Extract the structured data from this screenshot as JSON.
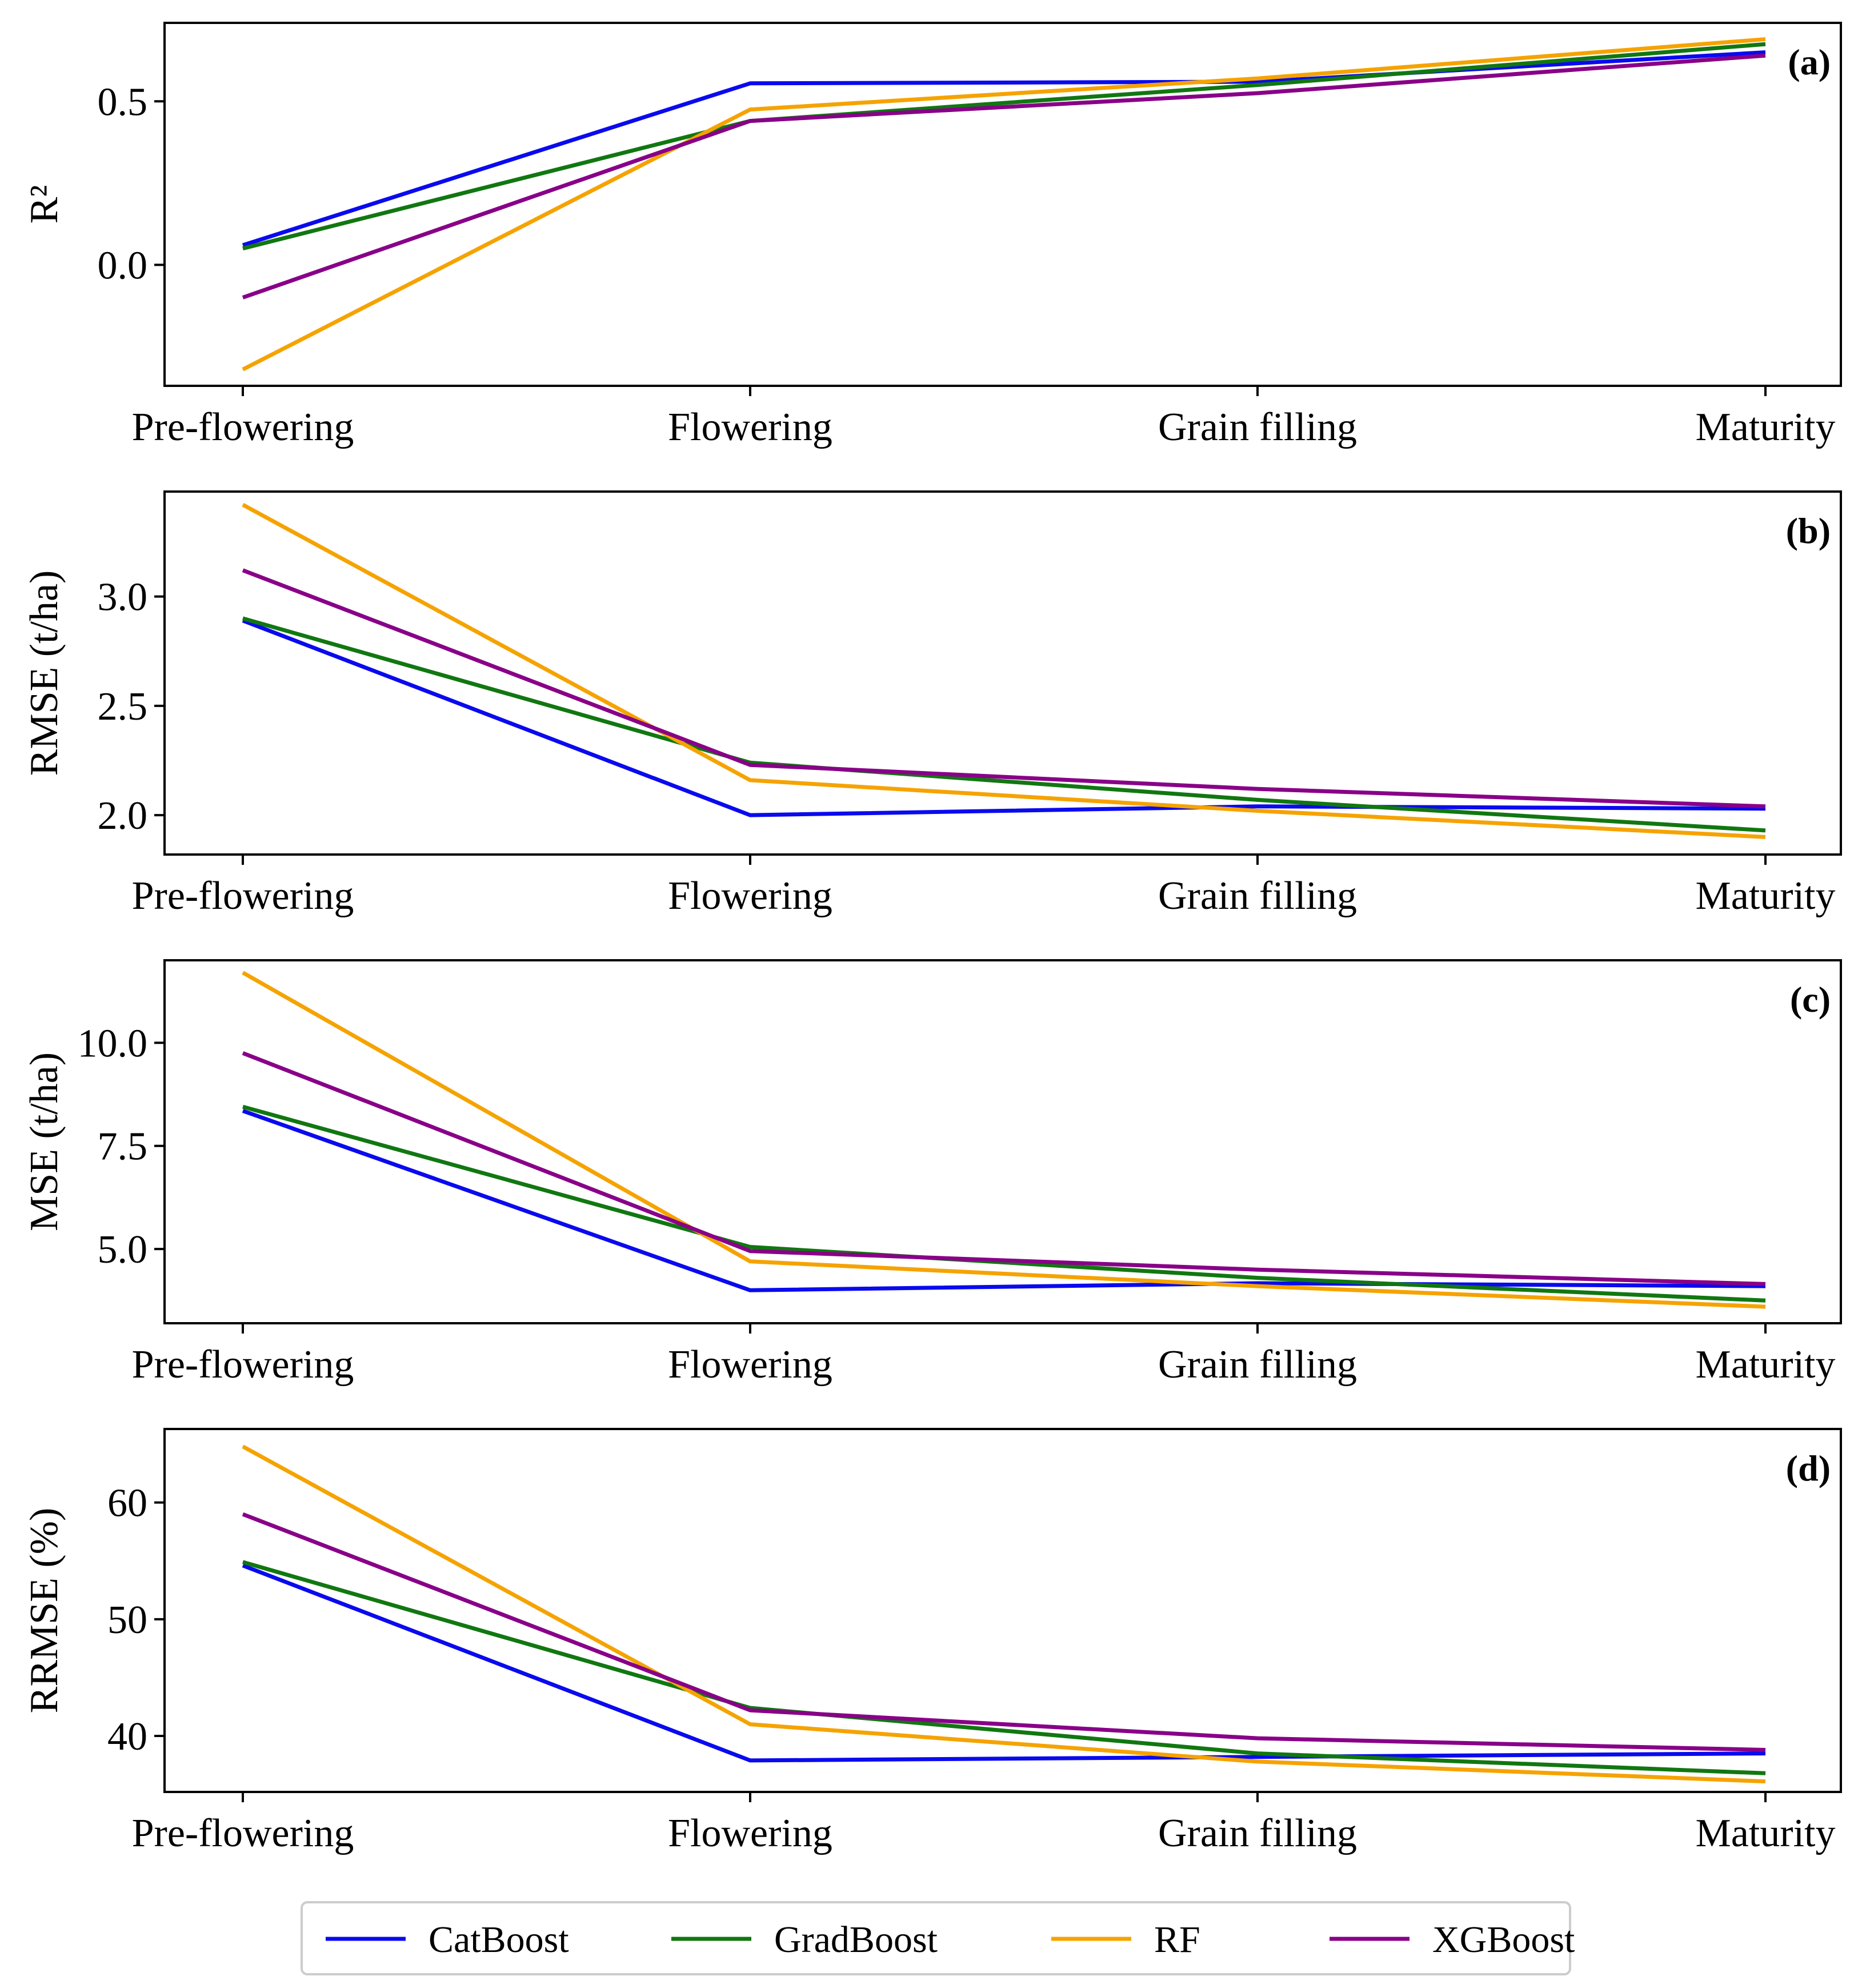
{
  "colors": {
    "CatBoost": "#0a0aee",
    "GradBoost": "#117711",
    "RF": "#f5a300",
    "XGBoost": "#880088"
  },
  "chart_data": [
    {
      "type": "line",
      "panel_tag": "(a)",
      "ylabel": "R²",
      "xlabel": "",
      "categories": [
        "Pre-flowering",
        "Flowering",
        "Grain filling",
        "Maturity"
      ],
      "ylim": [
        -0.37,
        0.74
      ],
      "yticks": [
        "0.0",
        "0.5"
      ],
      "series": [
        {
          "name": "CatBoost",
          "values": [
            0.06,
            0.555,
            0.56,
            0.65
          ]
        },
        {
          "name": "GradBoost",
          "values": [
            0.05,
            0.44,
            0.55,
            0.675
          ]
        },
        {
          "name": "RF",
          "values": [
            -0.32,
            0.475,
            0.57,
            0.69
          ]
        },
        {
          "name": "XGBoost",
          "values": [
            -0.1,
            0.44,
            0.525,
            0.64
          ]
        }
      ]
    },
    {
      "type": "line",
      "panel_tag": "(b)",
      "ylabel": "RMSE (t/ha)",
      "xlabel": "",
      "categories": [
        "Pre-flowering",
        "Flowering",
        "Grain filling",
        "Maturity"
      ],
      "ylim": [
        1.82,
        3.48
      ],
      "yticks": [
        "2.0",
        "2.5",
        "3.0"
      ],
      "series": [
        {
          "name": "CatBoost",
          "values": [
            2.89,
            2.0,
            2.04,
            2.03
          ]
        },
        {
          "name": "GradBoost",
          "values": [
            2.9,
            2.24,
            2.07,
            1.93
          ]
        },
        {
          "name": "RF",
          "values": [
            3.42,
            2.16,
            2.02,
            1.9
          ]
        },
        {
          "name": "XGBoost",
          "values": [
            3.12,
            2.23,
            2.12,
            2.04
          ]
        }
      ]
    },
    {
      "type": "line",
      "panel_tag": "(c)",
      "ylabel": "MSE (t/ha)",
      "xlabel": "",
      "categories": [
        "Pre-flowering",
        "Flowering",
        "Grain filling",
        "Maturity"
      ],
      "ylim": [
        3.2,
        12.0
      ],
      "yticks": [
        "5.0",
        "7.5",
        "10.0"
      ],
      "series": [
        {
          "name": "CatBoost",
          "values": [
            8.35,
            4.0,
            4.17,
            4.1
          ]
        },
        {
          "name": "GradBoost",
          "values": [
            8.45,
            5.05,
            4.3,
            3.75
          ]
        },
        {
          "name": "RF",
          "values": [
            11.7,
            4.7,
            4.1,
            3.6
          ]
        },
        {
          "name": "XGBoost",
          "values": [
            9.75,
            4.95,
            4.5,
            4.15
          ]
        }
      ]
    },
    {
      "type": "line",
      "panel_tag": "(d)",
      "ylabel": "RRMSE (%)",
      "xlabel": "",
      "categories": [
        "Pre-flowering",
        "Flowering",
        "Grain filling",
        "Maturity"
      ],
      "ylim": [
        35.2,
        66.3
      ],
      "yticks": [
        "40",
        "50",
        "60"
      ],
      "series": [
        {
          "name": "CatBoost",
          "values": [
            54.6,
            37.9,
            38.2,
            38.5
          ]
        },
        {
          "name": "GradBoost",
          "values": [
            54.9,
            42.4,
            38.5,
            36.8
          ]
        },
        {
          "name": "RF",
          "values": [
            64.8,
            41.0,
            37.8,
            36.1
          ]
        },
        {
          "name": "XGBoost",
          "values": [
            59.0,
            42.2,
            39.8,
            38.8
          ]
        }
      ]
    }
  ],
  "legend": {
    "position": "bottom-center",
    "items": [
      "CatBoost",
      "GradBoost",
      "RF",
      "XGBoost"
    ]
  }
}
